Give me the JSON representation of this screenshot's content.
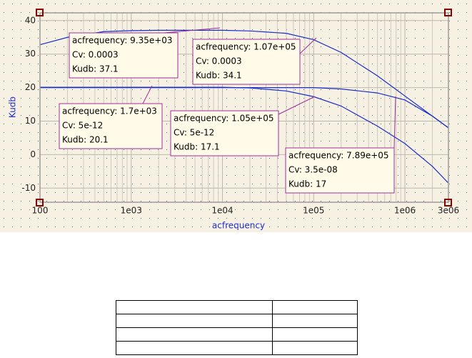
{
  "chart_data": {
    "type": "line",
    "x_label": "acfrequency",
    "y_label": "Kudb",
    "x": [
      100,
      200,
      500,
      1000,
      2000,
      5000,
      10000,
      20000,
      50000,
      100000,
      200000,
      500000,
      1000000,
      2000000,
      3000000
    ],
    "series": [
      {
        "color": "#1a2ecc",
        "values": [
          32.8,
          35,
          36.7,
          37,
          37.1,
          37.1,
          37.1,
          36.9,
          36.2,
          34.3,
          30.5,
          23.5,
          17.5,
          11.5,
          8
        ]
      },
      {
        "color": "#1a2ecc",
        "values": [
          20.1,
          20.1,
          20.1,
          20.1,
          20.1,
          20.1,
          20.1,
          19.9,
          19,
          17.3,
          14.5,
          8.5,
          3.3,
          -3.5,
          -8.5
        ]
      },
      {
        "color": "#1a2ecc",
        "values": [
          20,
          20,
          20,
          20,
          20,
          20,
          20,
          20,
          20,
          20,
          19.6,
          18.4,
          16.3,
          11.5,
          8
        ]
      }
    ],
    "xlog": true,
    "xlim": [
      100,
      3000000
    ],
    "xticks": [
      100,
      {
        "value": 1000,
        "label": "1e03"
      },
      {
        "value": 10000,
        "label": "1e04"
      },
      {
        "value": 100000,
        "label": "1e05"
      },
      {
        "value": 1000000,
        "label": "1e06"
      },
      {
        "value": 3000000,
        "label": "3e06"
      }
    ],
    "ylim": [
      -14.2,
      42.3
    ],
    "yticks": [
      -10,
      0,
      10,
      20,
      30,
      40
    ],
    "grid": true,
    "markers": [
      [
        "acfrequency: 9.35e+03",
        "Cv: 0.0003",
        "Kudb: 37.1"
      ],
      [
        "acfrequency: 1.07e+05",
        "Cv: 0.0003",
        "Kudb: 34.1"
      ],
      [
        "acfrequency: 1.7e+03",
        "Cv: 5e-12",
        "Kudb: 20.1"
      ],
      [
        "acfrequency: 1.05e+05",
        "Cv: 5e-12",
        "Kudb: 17.1"
      ],
      [
        "acfrequency: 7.89e+05",
        "Cv: 3.5e-08",
        "Kudb: 17"
      ]
    ]
  }
}
